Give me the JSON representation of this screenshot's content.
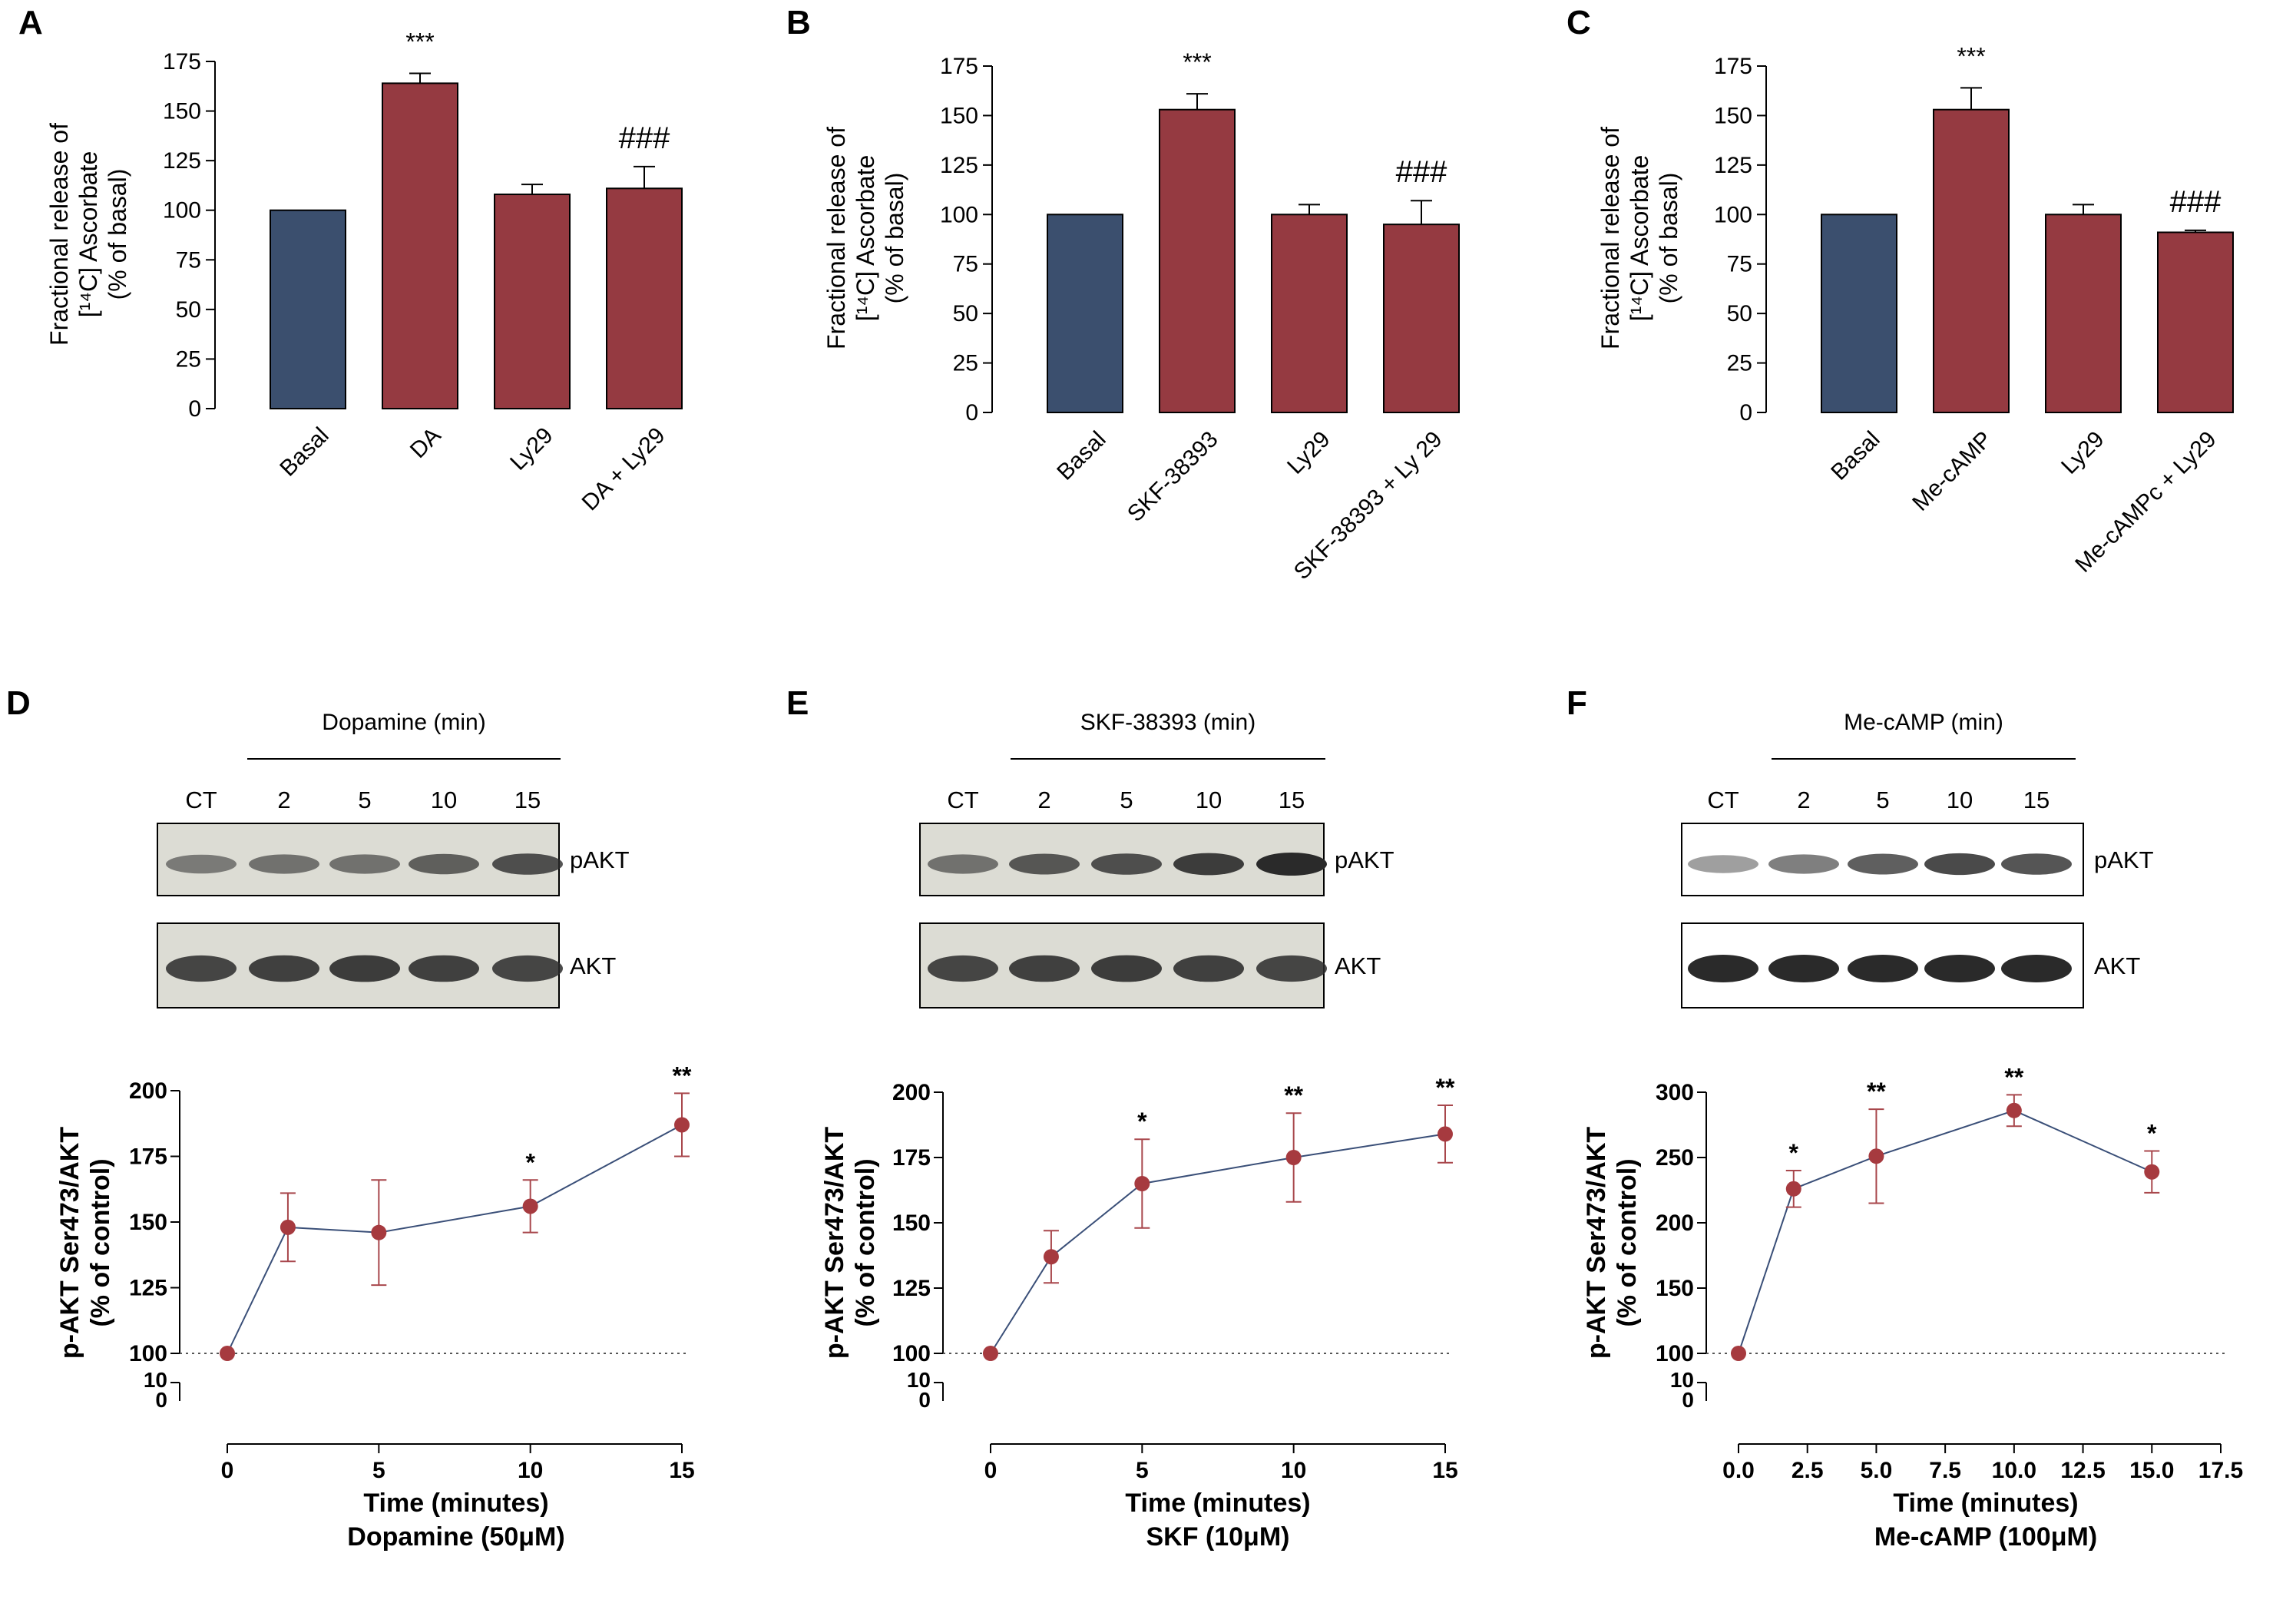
{
  "colors": {
    "basal": "#3b4f6e",
    "treat": "#953a41",
    "point": "#a63a3f",
    "line": "#3a4f78",
    "error": "#a8474c",
    "axis": "#000000",
    "blot_bg": "#dcdcd4",
    "band": "#2a2a2a"
  },
  "chart_data": [
    {
      "panel": "A",
      "type": "bar",
      "ylabel": [
        "Fractional release of",
        "[¹⁴C] Ascorbate",
        "(% of basal)"
      ],
      "ylim": [
        0,
        175
      ],
      "yticks": [
        0,
        25,
        50,
        75,
        100,
        125,
        150,
        175
      ],
      "categories": [
        "Basal",
        "DA",
        "Ly29",
        "DA + Ly29"
      ],
      "values": [
        100,
        164,
        108,
        111
      ],
      "errors": [
        0,
        5,
        5,
        11
      ],
      "annotations": [
        "",
        "***",
        "",
        "###"
      ]
    },
    {
      "panel": "B",
      "type": "bar",
      "ylabel": [
        "Fractional release of",
        "[¹⁴C] Ascorbate",
        "(% of basal)"
      ],
      "ylim": [
        0,
        175
      ],
      "yticks": [
        0,
        25,
        50,
        75,
        100,
        125,
        150,
        175
      ],
      "categories": [
        "Basal",
        "SKF-38393",
        "Ly29",
        "SKF-38393 + Ly 29"
      ],
      "values": [
        100,
        153,
        100,
        95
      ],
      "errors": [
        0,
        8,
        5,
        12
      ],
      "annotations": [
        "",
        "***",
        "",
        "###"
      ]
    },
    {
      "panel": "C",
      "type": "bar",
      "ylabel": [
        "Fractional release of",
        "[¹⁴C] Ascorbate",
        "(% of basal)"
      ],
      "ylim": [
        0,
        175
      ],
      "yticks": [
        0,
        25,
        50,
        75,
        100,
        125,
        150,
        175
      ],
      "categories": [
        "Basal",
        "Me-cAMP",
        "Ly29",
        "Me-cAMPc + Ly29"
      ],
      "values": [
        100,
        153,
        100,
        91
      ],
      "errors": [
        0,
        11,
        5,
        1
      ],
      "annotations": [
        "",
        "***",
        "",
        "###"
      ]
    },
    {
      "panel": "D",
      "type": "line",
      "blot": {
        "treatment": "Dopamine (min)",
        "lanes": [
          "CT",
          "2",
          "5",
          "10",
          "15"
        ],
        "rows": [
          "pAKT",
          "AKT"
        ]
      },
      "ylabel": [
        "p-AKT Ser473/AKT",
        "(% of control)"
      ],
      "xlabel": [
        "Time (minutes)",
        "Dopamine (50μM)"
      ],
      "x": [
        0,
        2,
        5,
        10,
        15
      ],
      "y": [
        100,
        148,
        146,
        156,
        187
      ],
      "errors": [
        0,
        13,
        20,
        10,
        12
      ],
      "annotations": [
        "",
        "",
        "",
        "*",
        "**"
      ],
      "xlim": [
        0,
        15
      ],
      "xticks": [
        "0",
        "5",
        "10",
        "15"
      ],
      "xtick_values": [
        0,
        5,
        10,
        15
      ],
      "ylim": [
        100,
        200
      ],
      "yticks": [
        100,
        125,
        150,
        175,
        200
      ],
      "ybreak_ticks": [
        "10",
        "0"
      ]
    },
    {
      "panel": "E",
      "type": "line",
      "blot": {
        "treatment": "SKF-38393 (min)",
        "lanes": [
          "CT",
          "2",
          "5",
          "10",
          "15"
        ],
        "rows": [
          "pAKT",
          "AKT"
        ]
      },
      "ylabel": [
        "p-AKT Ser473/AKT",
        "(% of control)"
      ],
      "xlabel": [
        "Time (minutes)",
        "SKF (10μM)"
      ],
      "x": [
        0,
        2,
        5,
        10,
        15
      ],
      "y": [
        100,
        137,
        165,
        175,
        184
      ],
      "errors": [
        0,
        10,
        17,
        17,
        11
      ],
      "annotations": [
        "",
        "",
        "*",
        "**",
        "**"
      ],
      "xlim": [
        0,
        15
      ],
      "xticks": [
        "0",
        "5",
        "10",
        "15"
      ],
      "xtick_values": [
        0,
        5,
        10,
        15
      ],
      "ylim": [
        100,
        200
      ],
      "yticks": [
        100,
        125,
        150,
        175,
        200
      ],
      "ybreak_ticks": [
        "10",
        "0"
      ]
    },
    {
      "panel": "F",
      "type": "line",
      "blot": {
        "treatment": "Me-cAMP (min)",
        "lanes": [
          "CT",
          "2",
          "5",
          "10",
          "15"
        ],
        "rows": [
          "pAKT",
          "AKT"
        ]
      },
      "ylabel": [
        "p-AKT Ser473/AKT",
        "(% of control)"
      ],
      "xlabel": [
        "Time (minutes)",
        "Me-cAMP (100μM)"
      ],
      "x": [
        0,
        2,
        5,
        10,
        15
      ],
      "y": [
        100,
        226,
        251,
        286,
        239
      ],
      "errors": [
        0,
        14,
        36,
        12,
        16
      ],
      "annotations": [
        "",
        "*",
        "**",
        "**",
        "*"
      ],
      "xlim": [
        0,
        17.5
      ],
      "xticks": [
        "0.0",
        "2.5",
        "5.0",
        "7.5",
        "10.0",
        "12.5",
        "15.0",
        "17.5"
      ],
      "xtick_values": [
        0,
        2.5,
        5,
        7.5,
        10,
        12.5,
        15,
        17.5
      ],
      "ylim": [
        100,
        300
      ],
      "yticks": [
        100,
        150,
        200,
        250,
        300
      ],
      "ybreak_ticks": [
        "10",
        "0"
      ]
    }
  ]
}
